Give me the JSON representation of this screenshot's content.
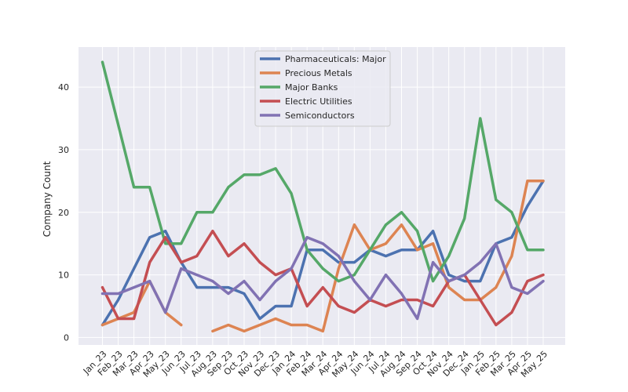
{
  "chart_data": {
    "type": "line",
    "title": "",
    "xlabel": "",
    "ylabel": "Company Count",
    "ylim": [
      -1.2,
      46.4
    ],
    "yticks": [
      0,
      10,
      20,
      30,
      40
    ],
    "grid": true,
    "legend_position": "top-center",
    "x": [
      "Jan_23",
      "Feb_23",
      "Mar_23",
      "Apr_23",
      "May_23",
      "Jun_23",
      "Jul_23",
      "Aug_23",
      "Sep_23",
      "Oct_23",
      "Nov_23",
      "Dec_23",
      "Jan_24",
      "Feb_24",
      "Mar_24",
      "Apr_24",
      "May_24",
      "Jun_24",
      "Jul_24",
      "Aug_24",
      "Sep_24",
      "Oct_24",
      "Nov_24",
      "Dec_24",
      "Jan_25",
      "Feb_25",
      "Mar_25",
      "Apr_25",
      "May_25"
    ],
    "series": [
      {
        "name": "Pharmaceuticals: Major",
        "color": "#4c72b0",
        "values": [
          2,
          6,
          11,
          16,
          17,
          12,
          8,
          8,
          8,
          7,
          3,
          5,
          5,
          14,
          14,
          12,
          12,
          14,
          13,
          14,
          14,
          17,
          10,
          9,
          9,
          15,
          16,
          21,
          25
        ]
      },
      {
        "name": "Precious Metals",
        "color": "#dd8452",
        "values": [
          2,
          3,
          4,
          9,
          4,
          2,
          null,
          1,
          2,
          1,
          2,
          3,
          2,
          2,
          1,
          11,
          18,
          14,
          15,
          18,
          14,
          15,
          8,
          6,
          6,
          8,
          13,
          25,
          25
        ]
      },
      {
        "name": "Major Banks",
        "color": "#55a868",
        "values": [
          44,
          34,
          24,
          24,
          15,
          15,
          20,
          20,
          24,
          26,
          26,
          27,
          23,
          14,
          11,
          9,
          10,
          14,
          18,
          20,
          17,
          9,
          13,
          19,
          35,
          22,
          20,
          14,
          14
        ]
      },
      {
        "name": "Electric Utilities",
        "color": "#c44e52",
        "values": [
          8,
          3,
          3,
          12,
          16,
          12,
          13,
          17,
          13,
          15,
          12,
          10,
          11,
          5,
          8,
          5,
          4,
          6,
          5,
          6,
          6,
          5,
          9,
          10,
          6,
          2,
          4,
          9,
          10
        ]
      },
      {
        "name": "Semiconductors",
        "color": "#8172b3",
        "values": [
          7,
          7,
          8,
          9,
          4,
          11,
          10,
          9,
          7,
          9,
          6,
          9,
          11,
          16,
          15,
          13,
          9,
          6,
          10,
          7,
          3,
          12,
          9,
          10,
          12,
          15,
          8,
          7,
          9
        ]
      }
    ]
  }
}
